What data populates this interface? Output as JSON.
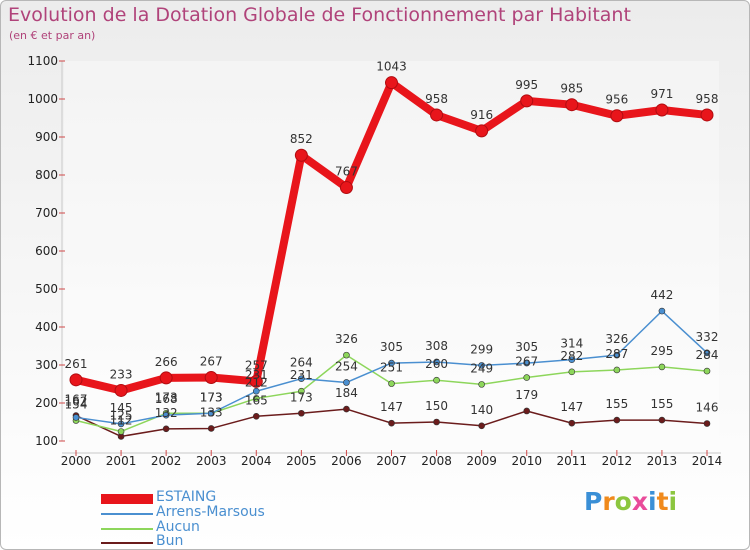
{
  "chart_data": {
    "type": "line",
    "title": "Evolution de la Dotation Globale de Fonctionnement par Habitant",
    "subtitle": "(en € et par an)",
    "xlabel": "",
    "ylabel": "",
    "categories": [
      "2000",
      "2001",
      "2002",
      "2003",
      "2004",
      "2005",
      "2006",
      "2007",
      "2008",
      "2009",
      "2010",
      "2011",
      "2012",
      "2013",
      "2014"
    ],
    "ylim": [
      100,
      1100
    ],
    "yticks": [
      "100",
      "200",
      "300",
      "400",
      "500",
      "600",
      "700",
      "800",
      "900",
      "1000",
      "1100"
    ],
    "series": [
      {
        "name": "ESTAING",
        "color": "#e8151b",
        "values": [
          261,
          233,
          266,
          267,
          257,
          852,
          767,
          1043,
          958,
          916,
          995,
          985,
          956,
          971,
          958
        ],
        "labels": [
          "261",
          "233",
          "266",
          "267",
          "257",
          "852",
          "767",
          "1043",
          "958",
          "916",
          "995",
          "985",
          "956",
          "971",
          "958"
        ]
      },
      {
        "name": "Arrens-Marsous",
        "color": "#4a8fd0",
        "values": [
          162,
          145,
          168,
          173,
          231,
          264,
          254,
          305,
          308,
          299,
          305,
          314,
          326,
          442,
          332
        ],
        "labels": [
          "162",
          "145",
          "168",
          "173",
          "231",
          "264",
          "254",
          "305",
          "308",
          "299",
          "305",
          "314",
          "326",
          "442",
          "332"
        ]
      },
      {
        "name": "Aucun",
        "color": "#8dd65b",
        "values": [
          154,
          125,
          173,
          173,
          212,
          231,
          326,
          251,
          260,
          249,
          267,
          282,
          287,
          295,
          284
        ],
        "labels": [
          "154",
          "125",
          "173",
          "173",
          "212",
          "231",
          "326",
          "251",
          "260",
          "249",
          "267",
          "282",
          "287",
          "295",
          "284"
        ]
      },
      {
        "name": "Bun",
        "color": "#6b1c1c",
        "values": [
          167,
          112,
          132,
          133,
          165,
          173,
          184,
          147,
          150,
          140,
          179,
          147,
          155,
          155,
          146
        ],
        "labels": [
          "167",
          "112",
          "132",
          "133",
          "165",
          "173",
          "184",
          "147",
          "150",
          "140",
          "179",
          "147",
          "155",
          "155",
          "146"
        ]
      }
    ]
  },
  "logo": {
    "letters": [
      "P",
      "r",
      "o",
      "x",
      "i",
      "t",
      "i"
    ],
    "colors": [
      "#3a8fd6",
      "#f08a1c",
      "#8cc63f",
      "#e94b9a",
      "#3a8fd6",
      "#f08a1c",
      "#8cc63f"
    ]
  }
}
